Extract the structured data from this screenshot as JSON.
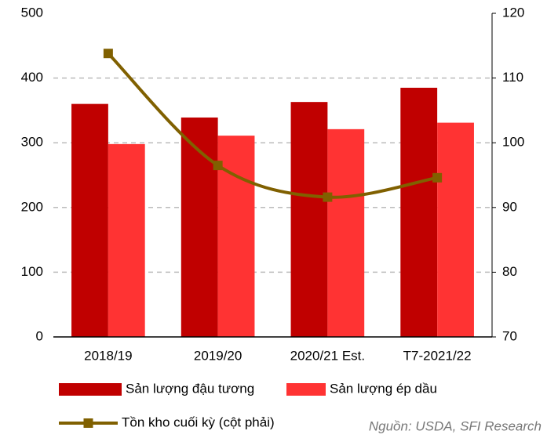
{
  "chart_data": {
    "type": "bar_line",
    "categories": [
      "2018/19",
      "2019/20",
      "2020/21 Est.",
      "T7-2021/22"
    ],
    "series": [
      {
        "name": "Sản lượng đậu tương",
        "color": "#c00000",
        "type": "bar",
        "values": [
          360,
          339,
          363,
          385
        ]
      },
      {
        "name": "Sản lượng ép dầu",
        "color": "#ff3333",
        "type": "bar",
        "values": [
          298,
          311,
          321,
          331
        ]
      },
      {
        "name": "Tồn kho cuối kỳ (cột phải)",
        "color": "#806000",
        "type": "line",
        "axis": "y2",
        "values": [
          113.8,
          96.5,
          91.6,
          94.6
        ]
      }
    ],
    "ylim": [
      0,
      500
    ],
    "yticks": [
      0,
      100,
      200,
      300,
      400,
      500
    ],
    "y2lim": [
      70,
      120
    ],
    "y2ticks": [
      70,
      80,
      90,
      100,
      110,
      120
    ],
    "grid": true,
    "legend": "bottom",
    "source": "Nguồn: USDA, SFI Research"
  }
}
